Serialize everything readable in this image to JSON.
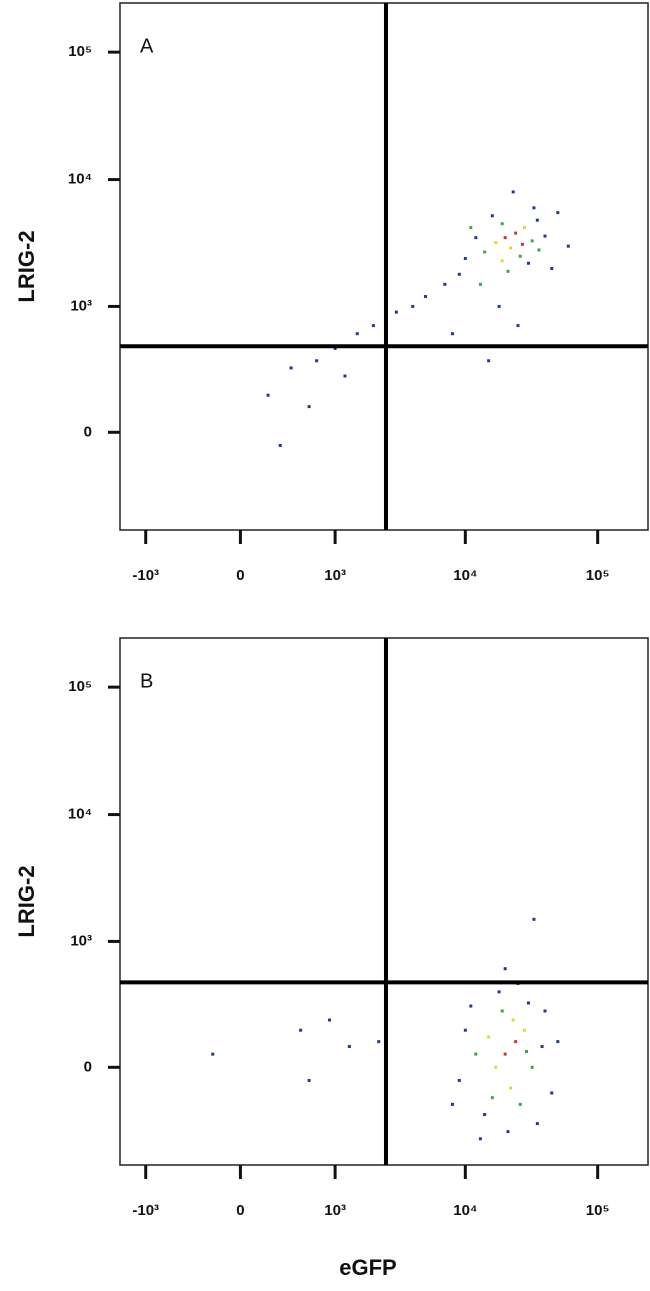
{
  "chart_data": [
    {
      "type": "scatter",
      "panel_label": "A",
      "y_label": "LRIG-2",
      "xscale": "biexponential",
      "yscale": "biexponential",
      "xlim": [
        -1600,
        240000
      ],
      "ylim": [
        -590,
        243000
      ],
      "xticks": [
        {
          "value": -1000,
          "label": "-10³"
        },
        0,
        {
          "value": 1000,
          "label": "10³"
        },
        {
          "value": 10000,
          "label": "10⁴"
        },
        {
          "value": 100000,
          "label": "10⁵"
        }
      ],
      "yticks": [
        0,
        {
          "value": 1000,
          "label": "10³"
        },
        {
          "value": 10000,
          "label": "10⁴"
        },
        {
          "value": 100000,
          "label": "10⁵"
        }
      ],
      "gate": {
        "x": 2500,
        "y": 470
      },
      "x": [
        20000,
        24000,
        17000,
        28000,
        22000,
        14000,
        32000,
        19000,
        26000,
        12000,
        35000,
        30000,
        16000,
        40000,
        10000,
        9000,
        7000,
        5000,
        4000,
        3000,
        2000,
        1500,
        1000,
        700,
        400,
        200,
        600,
        1200,
        2500,
        18000,
        25000,
        15000,
        45000,
        50000,
        23000,
        13000,
        21000,
        33000,
        60000,
        8000,
        300,
        11000,
        27000,
        19000,
        36000
      ],
      "y": [
        3500,
        3800,
        3200,
        4200,
        2900,
        2700,
        3300,
        4500,
        2500,
        3500,
        4800,
        2200,
        5200,
        3600,
        2400,
        1800,
        1500,
        1200,
        1000,
        900,
        700,
        600,
        450,
        350,
        300,
        150,
        100,
        250,
        400,
        1000,
        700,
        350,
        2000,
        5500,
        8000,
        1500,
        1900,
        6000,
        3000,
        600,
        -50,
        4200,
        3100,
        2300,
        2800
      ],
      "point_colors": [
        "#d8322a",
        "#d8322a",
        "#e8d82c",
        "#e8d82c",
        "#e8d82c",
        "#3aa845",
        "#3aa845",
        "#3aa845",
        "#3aa845",
        "#1f3a93",
        "#1f3a93",
        "#1f3a93",
        "#1f3a93",
        "#1f3a93",
        "#1f3a93",
        "#1f3a93",
        "#1f3a93",
        "#1f3a93",
        "#1f3a93",
        "#1f3a93",
        "#1f3a93",
        "#1f3a93",
        "#1f3a93",
        "#1f3a93",
        "#1f3a93",
        "#1f3a93",
        "#1f3a93",
        "#1f3a93",
        "#1f3a93",
        "#1f3a93",
        "#1f3a93",
        "#1f3a93",
        "#1f3a93",
        "#1f3a93",
        "#1f3a93",
        "#3aa845",
        "#3aa845",
        "#1f3a93",
        "#1f3a93",
        "#1f3a93",
        "#1f3a93",
        "#3aa845",
        "#d8322a",
        "#e8d82c",
        "#3aa845"
      ]
    },
    {
      "type": "scatter",
      "panel_label": "B",
      "y_label": "LRIG-2",
      "x_label": "eGFP",
      "xscale": "biexponential",
      "yscale": "biexponential",
      "xlim": [
        -1600,
        240000
      ],
      "ylim": [
        -590,
        243000
      ],
      "xticks": [
        {
          "value": -1000,
          "label": "-10³"
        },
        0,
        {
          "value": 1000,
          "label": "10³"
        },
        {
          "value": 10000,
          "label": "10⁴"
        },
        {
          "value": 100000,
          "label": "10⁵"
        }
      ],
      "yticks": [
        0,
        {
          "value": 1000,
          "label": "10³"
        },
        {
          "value": 10000,
          "label": "10⁴"
        },
        {
          "value": 100000,
          "label": "10⁵"
        }
      ],
      "gate": {
        "x": 2500,
        "y": 460
      },
      "x": [
        20000,
        24000,
        17000,
        28000,
        15000,
        22000,
        12000,
        32000,
        19000,
        26000,
        10000,
        38000,
        14000,
        30000,
        9000,
        45000,
        21000,
        18000,
        35000,
        11000,
        25000,
        40000,
        8000,
        16000,
        29000,
        23000,
        33000,
        20000,
        900,
        500,
        -200,
        1300,
        2200,
        600,
        13000,
        50000
      ],
      "y": [
        50,
        100,
        0,
        150,
        120,
        -80,
        50,
        0,
        250,
        -150,
        150,
        80,
        -200,
        300,
        -50,
        -100,
        -300,
        380,
        -250,
        280,
        450,
        250,
        -150,
        -120,
        60,
        200,
        1500,
        600,
        200,
        150,
        50,
        80,
        100,
        -50,
        -350,
        100
      ],
      "point_colors": [
        "#d8322a",
        "#d8322a",
        "#e8d82c",
        "#e8d82c",
        "#e8d82c",
        "#e8d82c",
        "#3aa845",
        "#3aa845",
        "#3aa845",
        "#3aa845",
        "#1f3a93",
        "#1f3a93",
        "#1f3a93",
        "#1f3a93",
        "#1f3a93",
        "#1f3a93",
        "#1f3a93",
        "#1f3a93",
        "#1f3a93",
        "#1f3a93",
        "#1f3a93",
        "#1f3a93",
        "#1f3a93",
        "#3aa845",
        "#3aa845",
        "#e8d82c",
        "#1f3a93",
        "#1f3a93",
        "#1f3a93",
        "#1f3a93",
        "#1f3a93",
        "#1f3a93",
        "#1f3a93",
        "#1f3a93",
        "#1f3a93",
        "#1f3a93"
      ]
    }
  ]
}
